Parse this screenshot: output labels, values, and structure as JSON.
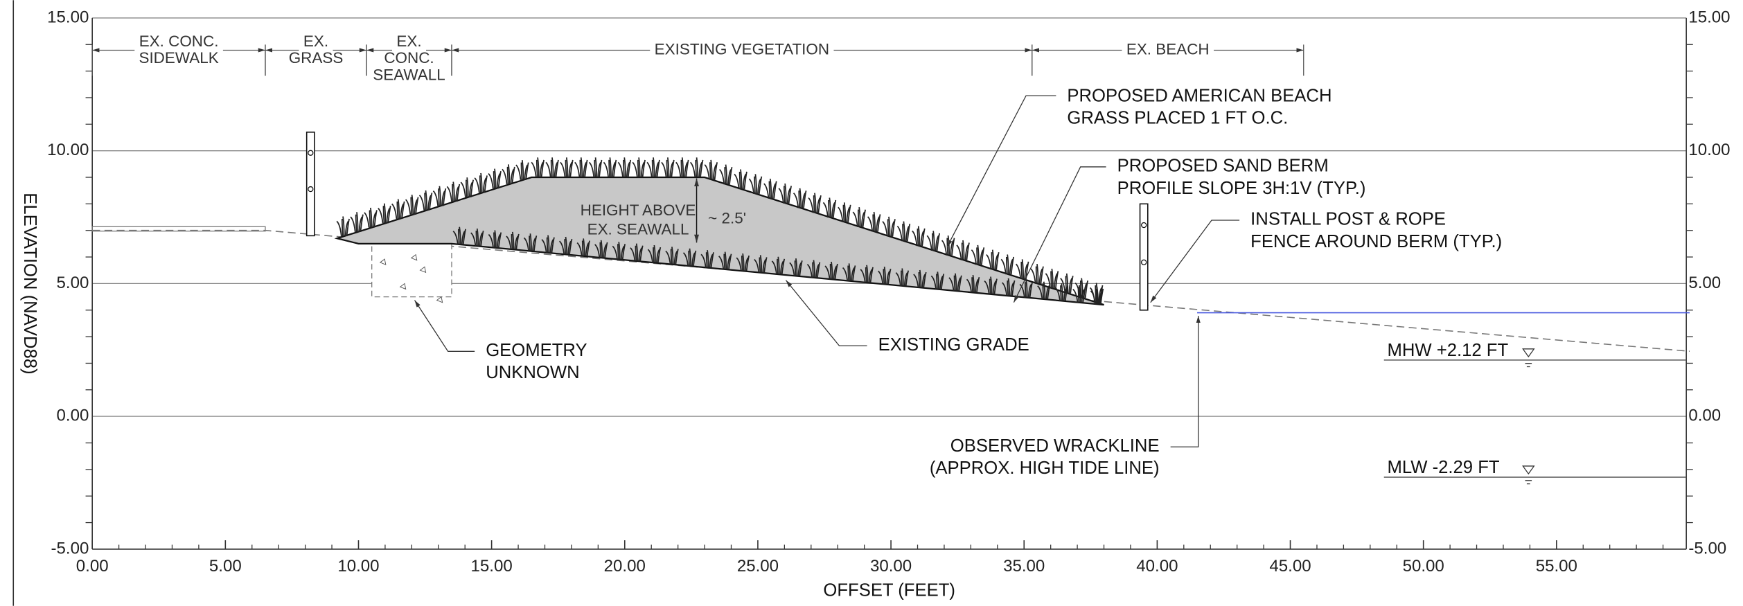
{
  "axes": {
    "x_label": "OFFSET (FEET)",
    "y_label": "ELEVATION (NAVD88)",
    "xlim": [
      0,
      60
    ],
    "ylim": [
      -5,
      15
    ],
    "xticks": [
      {
        "value": 0,
        "label": "0.00"
      },
      {
        "value": 5,
        "label": "5.00"
      },
      {
        "value": 10,
        "label": "10.00"
      },
      {
        "value": 15,
        "label": "15.00"
      },
      {
        "value": 20,
        "label": "20.00"
      },
      {
        "value": 25,
        "label": "25.00"
      },
      {
        "value": 30,
        "label": "30.00"
      },
      {
        "value": 35,
        "label": "35.00"
      },
      {
        "value": 40,
        "label": "40.00"
      },
      {
        "value": 45,
        "label": "45.00"
      },
      {
        "value": 50,
        "label": "50.00"
      },
      {
        "value": 55,
        "label": "55.00"
      }
    ],
    "yticks": [
      {
        "value": -5,
        "label": "-5.00"
      },
      {
        "value": 0,
        "label": "0.00"
      },
      {
        "value": 5,
        "label": "5.00"
      },
      {
        "value": 10,
        "label": "10.00"
      },
      {
        "value": 15,
        "label": "15.00"
      }
    ]
  },
  "zones": [
    {
      "lines": [
        "EX. CONC.",
        "SIDEWALK"
      ],
      "start": 0,
      "end": 6.5
    },
    {
      "lines": [
        "EX.",
        "GRASS"
      ],
      "start": 6.5,
      "end": 10.3
    },
    {
      "lines": [
        "EX.",
        "CONC.",
        "SEAWALL"
      ],
      "start": 10.3,
      "end": 13.5
    },
    {
      "lines": [
        "EXISTING VEGETATION"
      ],
      "start": 13.5,
      "end": 35.3
    },
    {
      "lines": [
        "EX. BEACH"
      ],
      "start": 35.3,
      "end": 45.5
    }
  ],
  "existing_grade": {
    "x": [
      0,
      6.5,
      60
    ],
    "y": [
      7.0,
      7.0,
      2.45
    ]
  },
  "berm": {
    "x": [
      9.2,
      16.5,
      23,
      38,
      13.5,
      10,
      9.2
    ],
    "y": [
      6.7,
      9.0,
      9.0,
      4.2,
      6.5,
      6.5,
      6.7
    ]
  },
  "seawall": {
    "x": [
      10.5,
      13.5
    ],
    "y": [
      4.5,
      6.5
    ]
  },
  "posts": [
    {
      "x": 8.2,
      "bottom": 6.8,
      "top": 10.7
    },
    {
      "x": 39.5,
      "bottom": 4.0,
      "top": 8.0
    }
  ],
  "water_line": {
    "x": [
      41.5,
      60
    ],
    "y": [
      3.9,
      3.9
    ]
  },
  "tide_levels": [
    {
      "label": "MHW +2.12 FT",
      "elevation": 2.12
    },
    {
      "label": "MLW -2.29 FT",
      "elevation": -2.29
    }
  ],
  "height_dimension": {
    "lines": [
      "HEIGHT ABOVE",
      "EX. SEAWALL"
    ],
    "value_label": "~ 2.5'"
  },
  "callouts": [
    {
      "lines": [
        "PROPOSED AMERICAN BEACH",
        "GRASS PLACED 1 FT O.C."
      ]
    },
    {
      "lines": [
        "PROPOSED SAND BERM",
        "PROFILE SLOPE 3H:1V (TYP.)"
      ]
    },
    {
      "lines": [
        "INSTALL POST & ROPE",
        "FENCE AROUND BERM (TYP.)"
      ]
    },
    {
      "lines": [
        "GEOMETRY",
        "UNKNOWN"
      ]
    },
    {
      "lines": [
        "EXISTING GRADE"
      ]
    },
    {
      "lines": [
        "OBSERVED WRACKLINE",
        "(APPROX. HIGH TIDE LINE)"
      ]
    }
  ]
}
